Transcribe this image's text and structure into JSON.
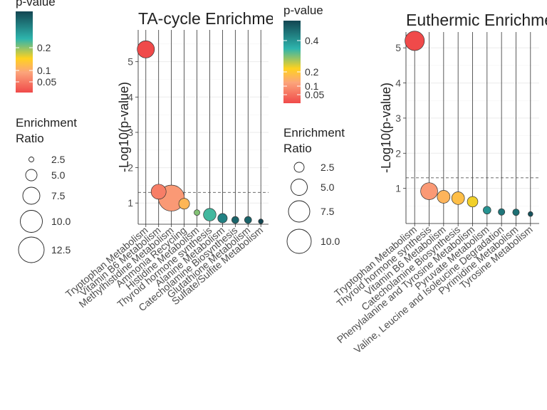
{
  "panels": [
    {
      "title": "TA-cycle Enrichment",
      "legend": {
        "color_title": "p-value",
        "color_ticks": [
          "0.2",
          "0.1",
          "0.05"
        ],
        "size_title": [
          "Enrichment",
          "Ratio"
        ],
        "size_ticks": [
          "2.5",
          "5.0",
          "7.5",
          "10.0",
          "12.5"
        ]
      }
    },
    {
      "title": "Euthermic Enrichment",
      "legend": {
        "color_title": "p-value",
        "color_ticks": [
          "0.4",
          "0.2",
          "0.1",
          "0.05"
        ],
        "size_title": [
          "Enrichment",
          "Ratio"
        ],
        "size_ticks": [
          "2.5",
          "5.0",
          "7.5",
          "10.0"
        ]
      }
    }
  ],
  "chart_data": [
    {
      "type": "scatter",
      "title": "TA-cycle Enrichment",
      "ylabel": "-Log10(p-value)",
      "xlabel": "",
      "ylim": [
        0.4,
        5.9
      ],
      "yticks": [
        1,
        2,
        3,
        4,
        5
      ],
      "threshold": 1.3,
      "grid": true,
      "colors": {
        "low_p": "#f04a4a",
        "mid1": "#fca47b",
        "mid2": "#ffd21f",
        "mid3": "#2eb5ad",
        "high_p": "#134652"
      },
      "categories": [
        "Tryptophan Metabolism",
        "Vitamin B6 Metabolism",
        "Methylhistidine Metabolism",
        "Ammonia Recycling",
        "Histidine Metabolism",
        "Thyroid hormone synthesis",
        "Alanine Metabolism",
        "Catecholamine Biosynthesis",
        "Glutathione Metabolism",
        "Sulfate/Sulfite Metabolism"
      ],
      "values": [
        5.35,
        1.32,
        1.14,
        0.98,
        0.73,
        0.67,
        0.57,
        0.52,
        0.52,
        0.48
      ],
      "ratio": [
        6.5,
        5.5,
        10.5,
        3.6,
        1.3,
        4.4,
        3.0,
        1.9,
        1.9,
        0.9
      ],
      "pvalue": [
        0.0001,
        0.048,
        0.072,
        0.105,
        0.186,
        0.21,
        0.27,
        0.3,
        0.3,
        0.33
      ]
    },
    {
      "type": "scatter",
      "title": "Euthermic Enrichment",
      "ylabel": "-Log10(p-value)",
      "xlabel": "",
      "ylim": [
        0.0,
        5.45
      ],
      "yticks": [
        1,
        2,
        3,
        4,
        5
      ],
      "threshold": 1.3,
      "grid": true,
      "colors": {
        "low_p": "#f04a4a",
        "mid1": "#fca47b",
        "mid2": "#ffd21f",
        "mid3": "#2eb5ad",
        "high_p": "#134652"
      },
      "categories": [
        "Tryptophan Metabolism",
        "Thyroid hormone synthesis",
        "Vitamin B6 Metabolism",
        "Catecholamine Biosynthesis",
        "Phenylalanine and Tyrosine Metabolism",
        "Pyruvate Metabolism",
        "Valine, Leucine and Isoleucine Degradation",
        "Pyrimidine Metabolism",
        "Tyrosine Metabolism"
      ],
      "values": [
        5.2,
        0.92,
        0.76,
        0.72,
        0.62,
        0.38,
        0.33,
        0.32,
        0.27
      ],
      "ratio": [
        7.5,
        6.4,
        4.5,
        4.5,
        3.5,
        2.2,
        1.7,
        1.7,
        0.9
      ],
      "pvalue": [
        0.0001,
        0.12,
        0.17,
        0.19,
        0.24,
        0.42,
        0.47,
        0.48,
        0.53
      ]
    }
  ]
}
